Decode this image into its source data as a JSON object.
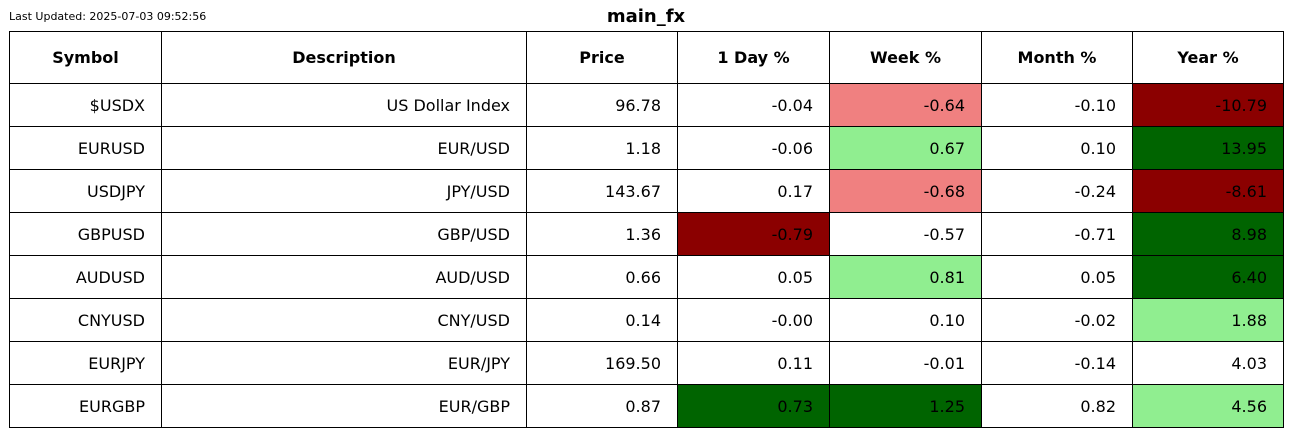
{
  "header": {
    "last_updated": "Last Updated: 2025-07-03 09:52:56",
    "title": "main_fx"
  },
  "colors": {
    "strong_negative": "#8b0000",
    "mild_negative": "#f08080",
    "strong_positive": "#006400",
    "mild_positive": "#90ee90",
    "neutral": "#ffffff"
  },
  "chart_data": {
    "type": "table",
    "title": "main_fx",
    "columns": [
      "Symbol",
      "Description",
      "Price",
      "1 Day %",
      "Week %",
      "Month %",
      "Year %"
    ],
    "rows": [
      [
        "$USDX",
        "US Dollar Index",
        "96.78",
        "-0.04",
        "-0.64",
        "-0.10",
        "-10.79"
      ],
      [
        "EURUSD",
        "EUR/USD",
        "1.18",
        "-0.06",
        "0.67",
        "0.10",
        "13.95"
      ],
      [
        "USDJPY",
        "JPY/USD",
        "143.67",
        "0.17",
        "-0.68",
        "-0.24",
        "-8.61"
      ],
      [
        "GBPUSD",
        "GBP/USD",
        "1.36",
        "-0.79",
        "-0.57",
        "-0.71",
        "8.98"
      ],
      [
        "AUDUSD",
        "AUD/USD",
        "0.66",
        "0.05",
        "0.81",
        "0.05",
        "6.40"
      ],
      [
        "CNYUSD",
        "CNY/USD",
        "0.14",
        "-0.00",
        "0.10",
        "-0.02",
        "1.88"
      ],
      [
        "EURJPY",
        "EUR/JPY",
        "169.50",
        "0.11",
        "-0.01",
        "-0.14",
        "4.03"
      ],
      [
        "EURGBP",
        "EUR/GBP",
        "0.87",
        "0.73",
        "1.25",
        "0.82",
        "4.56"
      ]
    ],
    "cell_colors": [
      [
        "neutral",
        "neutral",
        "neutral",
        "neutral",
        "mild_negative",
        "neutral",
        "strong_negative"
      ],
      [
        "neutral",
        "neutral",
        "neutral",
        "neutral",
        "mild_positive",
        "neutral",
        "strong_positive"
      ],
      [
        "neutral",
        "neutral",
        "neutral",
        "neutral",
        "mild_negative",
        "neutral",
        "strong_negative"
      ],
      [
        "neutral",
        "neutral",
        "neutral",
        "strong_negative",
        "neutral",
        "neutral",
        "strong_positive"
      ],
      [
        "neutral",
        "neutral",
        "neutral",
        "neutral",
        "mild_positive",
        "neutral",
        "strong_positive"
      ],
      [
        "neutral",
        "neutral",
        "neutral",
        "neutral",
        "neutral",
        "neutral",
        "mild_positive"
      ],
      [
        "neutral",
        "neutral",
        "neutral",
        "neutral",
        "neutral",
        "neutral",
        "neutral"
      ],
      [
        "neutral",
        "neutral",
        "neutral",
        "strong_positive",
        "strong_positive",
        "neutral",
        "mild_positive"
      ]
    ]
  }
}
